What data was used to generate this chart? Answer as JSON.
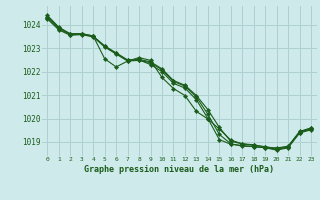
{
  "title": "Graphe pression niveau de la mer (hPa)",
  "background_color": "#ceeaea",
  "grid_color": "#aed0d0",
  "line_color": "#1a5c1a",
  "marker_color": "#1a5c1a",
  "xlim": [
    -0.5,
    23.5
  ],
  "ylim": [
    1018.4,
    1024.8
  ],
  "yticks": [
    1019,
    1020,
    1021,
    1022,
    1023,
    1024
  ],
  "xticks": [
    0,
    1,
    2,
    3,
    4,
    5,
    6,
    7,
    8,
    9,
    10,
    11,
    12,
    13,
    14,
    15,
    16,
    17,
    18,
    19,
    20,
    21,
    22,
    23
  ],
  "series": [
    [
      1024.4,
      1023.9,
      1023.6,
      1023.6,
      1023.5,
      1023.1,
      1022.8,
      1022.5,
      1022.5,
      1022.3,
      1022.0,
      1021.5,
      1021.3,
      1020.8,
      1020.0,
      1019.1,
      1018.9,
      1018.85,
      1018.8,
      1018.75,
      1018.75,
      1018.8,
      1019.4,
      1019.55
    ],
    [
      1024.35,
      1023.88,
      1023.62,
      1023.62,
      1023.52,
      1022.55,
      1022.2,
      1022.45,
      1022.6,
      1022.48,
      1021.75,
      1021.28,
      1020.98,
      1020.3,
      1019.98,
      1019.55,
      1019.08,
      1018.92,
      1018.85,
      1018.8,
      1018.72,
      1018.82,
      1019.45,
      1019.6
    ],
    [
      1024.3,
      1023.82,
      1023.58,
      1023.62,
      1023.52,
      1023.08,
      1022.78,
      1022.48,
      1022.52,
      1022.42,
      1022.12,
      1021.62,
      1021.42,
      1020.98,
      1020.38,
      1019.62,
      1019.02,
      1018.92,
      1018.88,
      1018.78,
      1018.68,
      1018.78,
      1019.42,
      1019.58
    ],
    [
      1024.25,
      1023.78,
      1023.55,
      1023.58,
      1023.48,
      1023.05,
      1022.75,
      1022.45,
      1022.48,
      1022.38,
      1022.08,
      1021.58,
      1021.38,
      1020.92,
      1020.18,
      1019.32,
      1018.92,
      1018.82,
      1018.8,
      1018.75,
      1018.65,
      1018.75,
      1019.38,
      1019.52
    ]
  ]
}
